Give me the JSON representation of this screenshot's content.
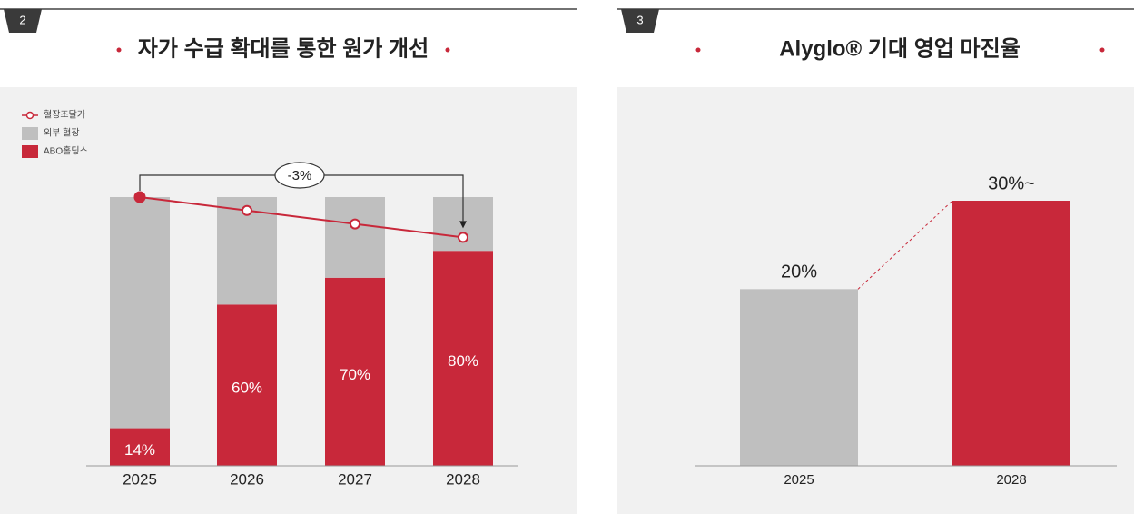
{
  "chart_data": [
    {
      "type": "bar",
      "stacked": true,
      "number": "2",
      "title": "자가 수급 확대를 통한 원가 개선",
      "categories": [
        "2025",
        "2026",
        "2027",
        "2028"
      ],
      "series": [
        {
          "name": "ABO홀딩스",
          "color": "#c8283a",
          "values": [
            14,
            60,
            70,
            80
          ],
          "value_labels": [
            "14%",
            "60%",
            "70%",
            "80%"
          ]
        },
        {
          "name": "외부 혈장",
          "color": "#bfbfbf",
          "values": [
            86,
            40,
            30,
            20
          ]
        },
        {
          "name": "혈장조달가",
          "type": "line",
          "color": "#c8283a",
          "values": [
            100,
            95,
            90,
            85
          ]
        }
      ],
      "annotation": "-3%",
      "ylim": [
        0,
        100
      ]
    },
    {
      "type": "bar",
      "number": "3",
      "title": "Alyglo® 기대 영업 마진율",
      "categories": [
        "2025",
        "2028"
      ],
      "values": [
        20,
        30
      ],
      "value_labels": [
        "20%",
        "30%~"
      ],
      "colors": [
        "#bfbfbf",
        "#c8283a"
      ],
      "ylim": [
        0,
        30
      ]
    }
  ]
}
